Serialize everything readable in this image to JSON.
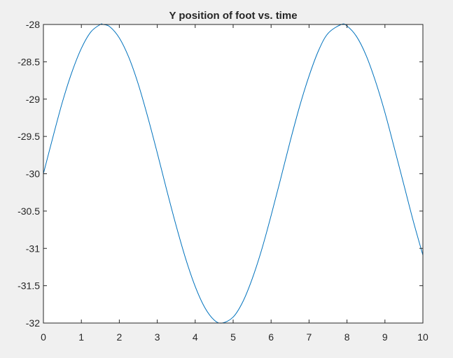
{
  "chart_data": {
    "type": "line",
    "title": "Y position of foot vs. time",
    "xlabel": "",
    "ylabel": "",
    "xlim": [
      0,
      10
    ],
    "ylim": [
      -32,
      -28
    ],
    "xticks": [
      0,
      1,
      2,
      3,
      4,
      5,
      6,
      7,
      8,
      9,
      10
    ],
    "xtick_labels": [
      "0",
      "1",
      "2",
      "3",
      "4",
      "5",
      "6",
      "7",
      "8",
      "9",
      "10"
    ],
    "yticks": [
      -28,
      -28.5,
      -29,
      -29.5,
      -30,
      -30.5,
      -31,
      -31.5,
      -32
    ],
    "ytick_labels": [
      "-28",
      "-28.5",
      "-29",
      "-29.5",
      "-30",
      "-30.5",
      "-31",
      "-31.5",
      "-32"
    ],
    "grid": false,
    "series": [
      {
        "color": "#0072bd",
        "x": [
          0,
          0.25,
          0.5,
          0.75,
          1,
          1.25,
          1.5,
          1.57,
          1.75,
          2,
          2.25,
          2.5,
          2.75,
          3,
          3.25,
          3.5,
          3.75,
          4,
          4.25,
          4.5,
          4.71,
          5,
          5.25,
          5.5,
          5.75,
          6,
          6.25,
          6.5,
          6.75,
          7,
          7.25,
          7.5,
          7.85,
          8,
          8.25,
          8.5,
          8.75,
          9,
          9.25,
          9.5,
          9.75,
          10
        ],
        "y": [
          -30,
          -29.51,
          -29.04,
          -28.64,
          -28.32,
          -28.1,
          -28,
          -28,
          -28.03,
          -28.18,
          -28.44,
          -28.8,
          -29.24,
          -29.72,
          -30.22,
          -30.7,
          -31.14,
          -31.51,
          -31.79,
          -31.96,
          -32,
          -31.92,
          -31.72,
          -31.41,
          -31.02,
          -30.56,
          -30.07,
          -29.57,
          -29.1,
          -28.69,
          -28.35,
          -28.12,
          -28,
          -28.02,
          -28.16,
          -28.41,
          -28.76,
          -29.18,
          -29.66,
          -30.15,
          -30.64,
          -31.09
        ]
      }
    ]
  }
}
